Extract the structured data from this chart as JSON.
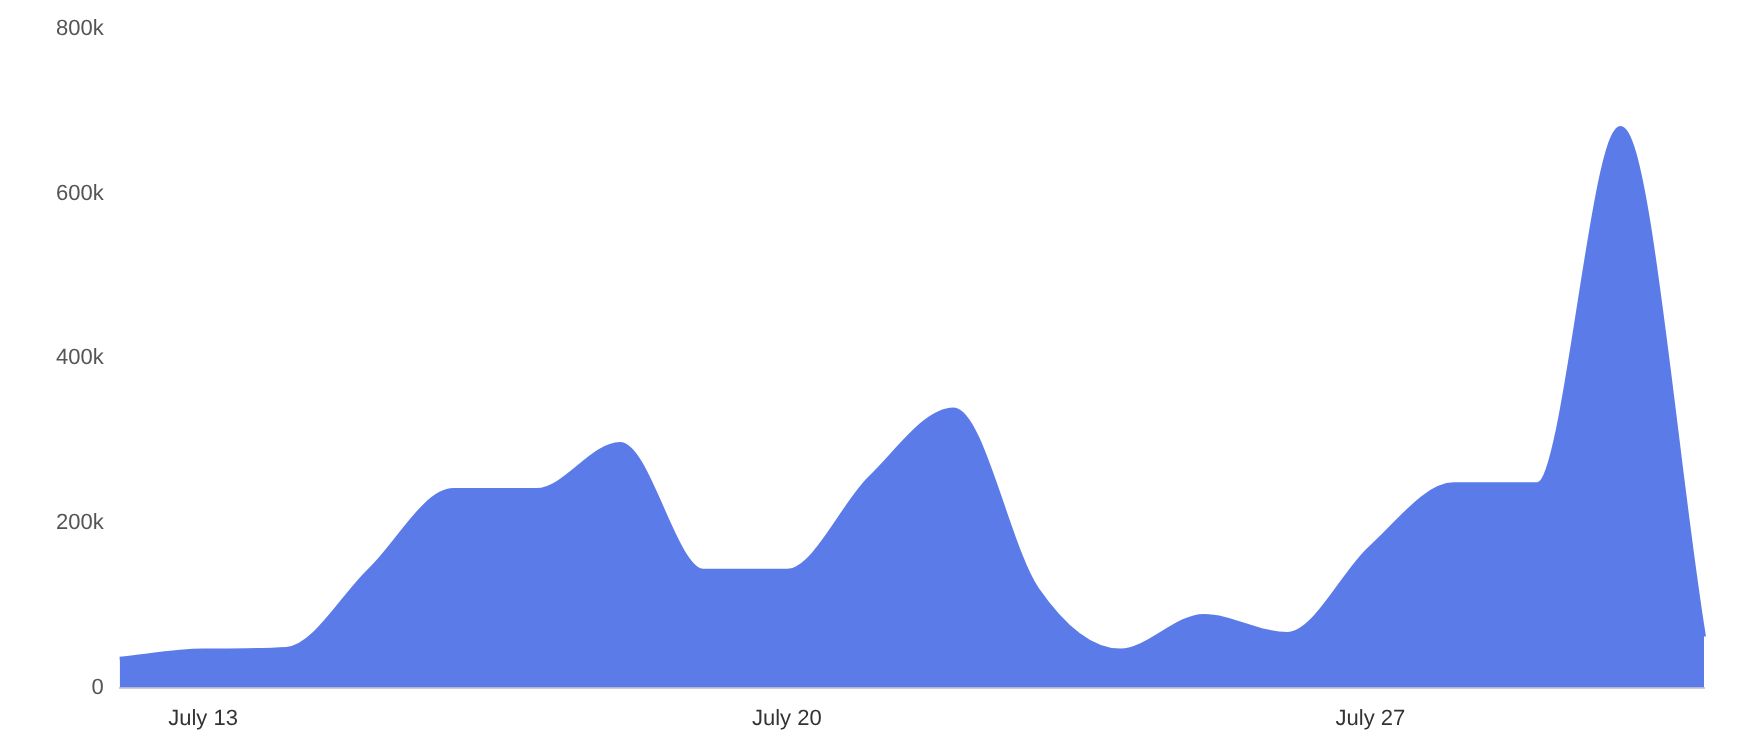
{
  "chart_data": {
    "type": "area",
    "categories": [
      null,
      "July 13",
      null,
      null,
      null,
      null,
      null,
      null,
      "July 20",
      null,
      null,
      null,
      null,
      null,
      null,
      "July 27",
      null,
      null,
      null,
      null
    ],
    "series": [
      {
        "color": "#5b7be9",
        "values": [
          35000,
          45000,
          47000,
          143000,
          240000,
          240000,
          296000,
          142000,
          142000,
          255000,
          338000,
          120000,
          45000,
          87000,
          65000,
          170000,
          247000,
          247000,
          680000,
          62000
        ]
      }
    ],
    "ylim": [
      0,
      800000
    ],
    "yticks": [
      {
        "value": 0,
        "label": "0"
      },
      {
        "value": 200000,
        "label": "200k"
      },
      {
        "value": 400000,
        "label": "400k"
      },
      {
        "value": 600000,
        "label": "600k"
      },
      {
        "value": 800000,
        "label": "800k"
      }
    ],
    "grid": false,
    "legend": false
  }
}
